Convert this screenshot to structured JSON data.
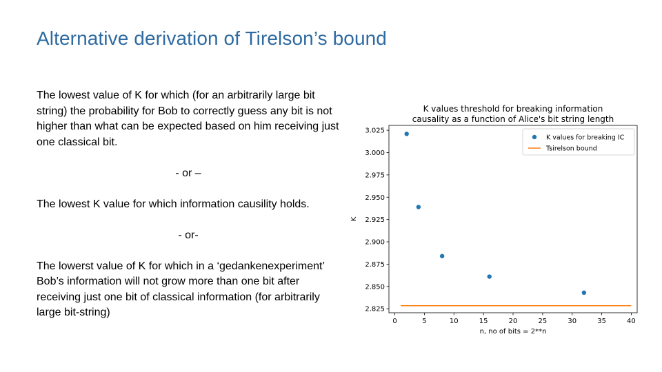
{
  "slide": {
    "title": "Alternative derivation of Tirelson’s bound",
    "paragraph1": "The lowest value of K for which (for an arbitrarily large bit string) the probability for Bob to correctly guess any bit is not higher than what can be expected based on him receiving just one classical bit.",
    "separator1": "- or –",
    "paragraph2": "The lowest K value for which information causility holds.",
    "separator2": "- or-",
    "paragraph3": "The lowerst value of K for which in a ‘gedankenexperiment’ Bob’s information will not grow more than one bit after receiving just one bit of classical information (for arbitrarily large bit-string)"
  },
  "chart_data": {
    "type": "scatter",
    "title_line1": "K values threshold for breaking information",
    "title_line2": "causality as a function of Alice's bit string length",
    "xlabel": "n, no of bits = 2**n",
    "ylabel": "K",
    "xlim": [
      -1,
      41
    ],
    "ylim": [
      2.8205,
      3.0305
    ],
    "xticks": [
      0,
      5,
      10,
      15,
      20,
      25,
      30,
      35,
      40
    ],
    "yticks": [
      2.825,
      2.85,
      2.875,
      2.9,
      2.925,
      2.95,
      2.975,
      3.0,
      3.025
    ],
    "ytick_labels": [
      "2.825",
      "2.850",
      "2.875",
      "2.900",
      "2.925",
      "2.950",
      "2.975",
      "3.000",
      "3.025"
    ],
    "legend_position": "top-right",
    "series": [
      {
        "name": "K values for breaking IC",
        "kind": "scatter",
        "color": "#1f77b4",
        "x": [
          2,
          4,
          8,
          16,
          32
        ],
        "y": [
          3.021,
          2.939,
          2.884,
          2.861,
          2.843
        ]
      },
      {
        "name": "Tsirelson bound",
        "kind": "line",
        "color": "#ff7f0e",
        "x": [
          1,
          40
        ],
        "y": [
          2.8284,
          2.8284
        ]
      }
    ]
  }
}
